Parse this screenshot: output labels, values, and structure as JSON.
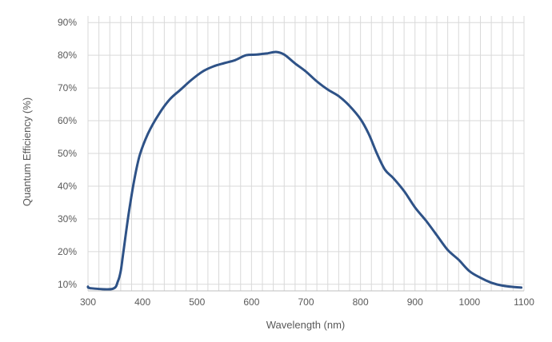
{
  "chart_data": {
    "type": "line",
    "title": "",
    "xlabel": "Wavelength (nm)",
    "ylabel": "Quantum Efficiency (%)",
    "xlim": [
      300,
      1100
    ],
    "ylim": [
      8,
      92
    ],
    "x_ticks": [
      300,
      400,
      500,
      600,
      700,
      800,
      900,
      1000,
      1100
    ],
    "x_tick_labels": [
      "300",
      "400",
      "500",
      "600",
      "700",
      "800",
      "900",
      "1000",
      "1100"
    ],
    "y_ticks": [
      10,
      20,
      30,
      40,
      50,
      60,
      70,
      80,
      90
    ],
    "y_tick_labels": [
      "10%",
      "20%",
      "30%",
      "40%",
      "50%",
      "60%",
      "70%",
      "80%",
      "90%"
    ],
    "grid": true,
    "legend": "none",
    "colors": {
      "series": "#2e5287",
      "grid": "#d9d9d9",
      "text": "#595959"
    },
    "series": [
      {
        "values": [
          [
            300,
            9.3
          ],
          [
            305,
            8.8
          ],
          [
            345,
            8.6
          ],
          [
            355,
            11
          ],
          [
            360,
            14
          ],
          [
            365,
            20
          ],
          [
            375,
            32
          ],
          [
            385,
            42
          ],
          [
            395,
            49.5
          ],
          [
            410,
            56
          ],
          [
            430,
            62
          ],
          [
            450,
            66.5
          ],
          [
            470,
            69.5
          ],
          [
            490,
            72.5
          ],
          [
            510,
            75
          ],
          [
            530,
            76.6
          ],
          [
            550,
            77.6
          ],
          [
            570,
            78.5
          ],
          [
            590,
            80
          ],
          [
            610,
            80.2
          ],
          [
            630,
            80.6
          ],
          [
            645,
            81
          ],
          [
            660,
            80.2
          ],
          [
            680,
            77.5
          ],
          [
            700,
            75
          ],
          [
            720,
            72
          ],
          [
            740,
            69.5
          ],
          [
            760,
            67.5
          ],
          [
            780,
            64.5
          ],
          [
            800,
            60.5
          ],
          [
            815,
            56
          ],
          [
            830,
            50
          ],
          [
            845,
            45
          ],
          [
            860,
            42.5
          ],
          [
            880,
            38.5
          ],
          [
            900,
            33.5
          ],
          [
            920,
            29.5
          ],
          [
            940,
            25
          ],
          [
            960,
            20.5
          ],
          [
            980,
            17.5
          ],
          [
            1000,
            14
          ],
          [
            1020,
            12
          ],
          [
            1040,
            10.5
          ],
          [
            1060,
            9.6
          ],
          [
            1080,
            9.2
          ],
          [
            1095,
            9
          ]
        ]
      }
    ]
  }
}
